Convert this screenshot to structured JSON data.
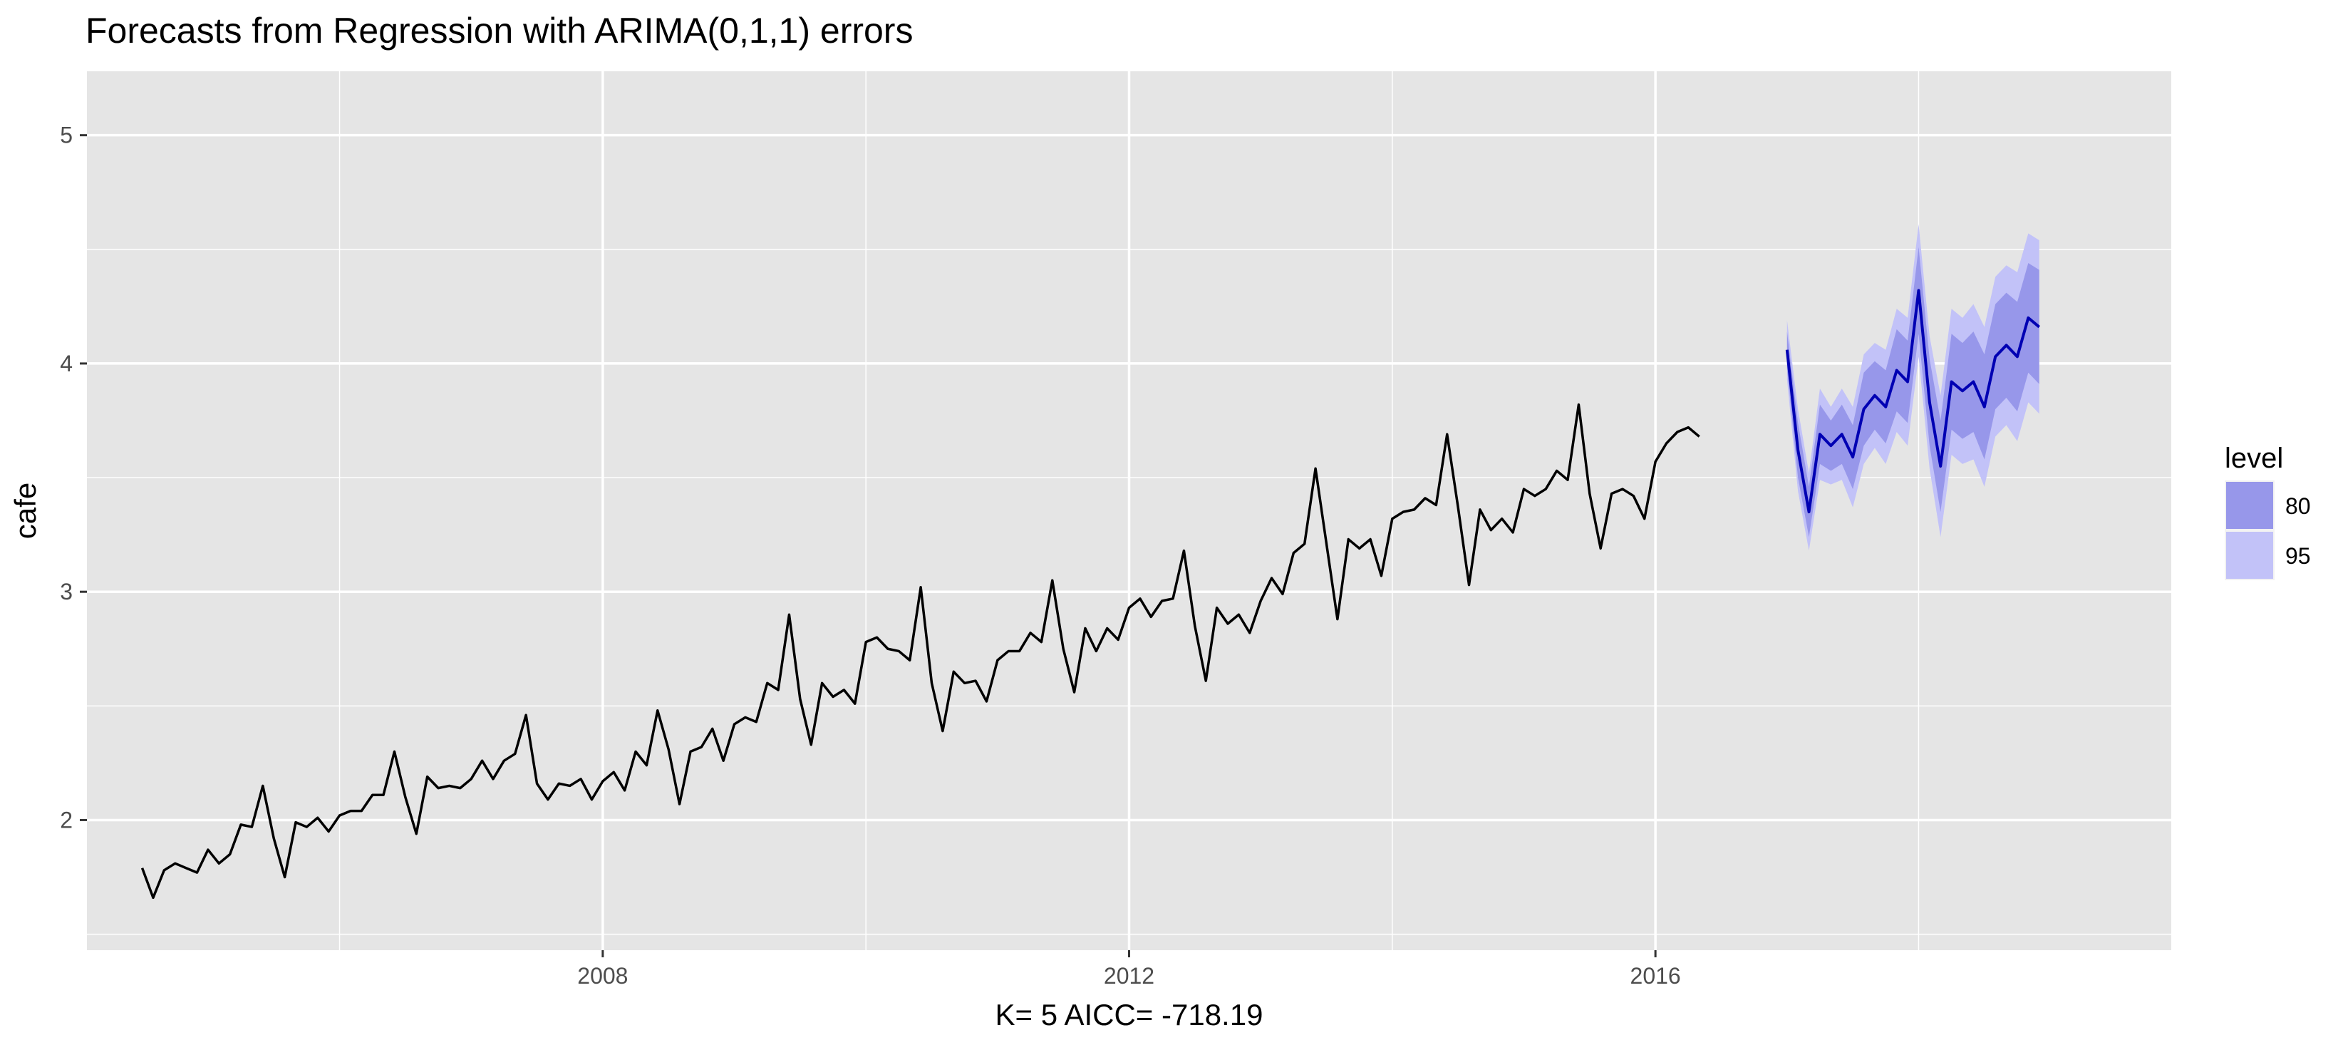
{
  "chart_data": {
    "type": "line",
    "title": "Forecasts from Regression with ARIMA(0,1,1) errors",
    "xlabel": "K= 5    AICC= -718.19",
    "ylabel": "cafe",
    "xlim": [
      2004.08,
      2019.92
    ],
    "ylim": [
      1.43,
      5.28
    ],
    "x_ticks": [
      2008,
      2012,
      2016
    ],
    "x_tick_labels": [
      "2008",
      "2012",
      "2016"
    ],
    "y_ticks": [
      2,
      3,
      4,
      5
    ],
    "y_tick_labels": [
      "2",
      "3",
      "4",
      "5"
    ],
    "grid": true,
    "legend": {
      "title": "level",
      "position": "right",
      "entries": [
        {
          "label": "80",
          "color": "#9797ea"
        },
        {
          "label": "95",
          "color": "#c2c2f8"
        }
      ]
    },
    "colors": {
      "panel": "#e5e5e5",
      "grid": "#ffffff",
      "history": "#000000",
      "forecast": "#0000b3",
      "band80": "#9797ea",
      "band95": "#c2c2f8"
    },
    "history": {
      "start": [
        2004,
        7
      ],
      "frequency": 12,
      "values": [
        1.79,
        1.66,
        1.78,
        1.81,
        1.79,
        1.77,
        1.87,
        1.81,
        1.85,
        1.98,
        1.97,
        2.15,
        1.92,
        1.75,
        1.99,
        1.97,
        2.01,
        1.95,
        2.02,
        2.04,
        2.04,
        2.11,
        2.11,
        2.3,
        2.1,
        1.94,
        2.19,
        2.14,
        2.15,
        2.14,
        2.18,
        2.26,
        2.18,
        2.26,
        2.29,
        2.46,
        2.16,
        2.09,
        2.16,
        2.15,
        2.18,
        2.09,
        2.17,
        2.21,
        2.13,
        2.3,
        2.24,
        2.48,
        2.31,
        2.07,
        2.3,
        2.32,
        2.4,
        2.26,
        2.42,
        2.45,
        2.43,
        2.6,
        2.57,
        2.9,
        2.53,
        2.33,
        2.6,
        2.54,
        2.57,
        2.51,
        2.78,
        2.8,
        2.75,
        2.74,
        2.7,
        3.02,
        2.6,
        2.39,
        2.65,
        2.6,
        2.61,
        2.52,
        2.7,
        2.74,
        2.74,
        2.82,
        2.78,
        3.05,
        2.75,
        2.56,
        2.84,
        2.74,
        2.84,
        2.79,
        2.93,
        2.97,
        2.89,
        2.96,
        2.97,
        3.18,
        2.85,
        2.61,
        2.93,
        2.86,
        2.9,
        2.82,
        2.96,
        3.06,
        2.99,
        3.17,
        3.21,
        3.54,
        3.21,
        2.88,
        3.23,
        3.19,
        3.23,
        3.07,
        3.32,
        3.35,
        3.36,
        3.41,
        3.38,
        3.69,
        3.37,
        3.03,
        3.36,
        3.27,
        3.32,
        3.26,
        3.45,
        3.42,
        3.45,
        3.53,
        3.49,
        3.82,
        3.43,
        3.19,
        3.43,
        3.45,
        3.42,
        3.32,
        3.57,
        3.65,
        3.7,
        3.72,
        3.68
      ]
    },
    "forecast": {
      "start": [
        2017,
        1
      ],
      "frequency": 12,
      "mean": [
        4.06,
        3.62,
        3.35,
        3.69,
        3.64,
        3.69,
        3.59,
        3.8,
        3.86,
        3.81,
        3.97,
        3.92,
        4.32,
        3.83,
        3.55,
        3.92,
        3.88,
        3.92,
        3.81,
        4.03,
        4.08,
        4.03,
        4.2,
        4.16
      ],
      "lo80": [
        3.98,
        3.5,
        3.24,
        3.56,
        3.53,
        3.56,
        3.45,
        3.64,
        3.71,
        3.65,
        3.79,
        3.74,
        4.13,
        3.64,
        3.35,
        3.71,
        3.67,
        3.7,
        3.58,
        3.8,
        3.85,
        3.79,
        3.96,
        3.91
      ],
      "hi80": [
        4.14,
        3.74,
        3.46,
        3.82,
        3.75,
        3.82,
        3.73,
        3.96,
        4.01,
        3.97,
        4.15,
        4.1,
        4.51,
        4.02,
        3.75,
        4.13,
        4.09,
        4.14,
        4.04,
        4.26,
        4.31,
        4.27,
        4.44,
        4.41
      ],
      "lo95": [
        3.93,
        3.44,
        3.18,
        3.49,
        3.47,
        3.49,
        3.37,
        3.56,
        3.63,
        3.56,
        3.7,
        3.64,
        4.03,
        3.54,
        3.24,
        3.6,
        3.56,
        3.58,
        3.46,
        3.68,
        3.73,
        3.66,
        3.83,
        3.78
      ],
      "hi95": [
        4.19,
        3.8,
        3.52,
        3.89,
        3.81,
        3.89,
        3.81,
        4.04,
        4.09,
        4.06,
        4.24,
        4.2,
        4.61,
        4.12,
        3.86,
        4.24,
        4.2,
        4.26,
        4.16,
        4.38,
        4.43,
        4.4,
        4.57,
        4.54
      ]
    }
  }
}
